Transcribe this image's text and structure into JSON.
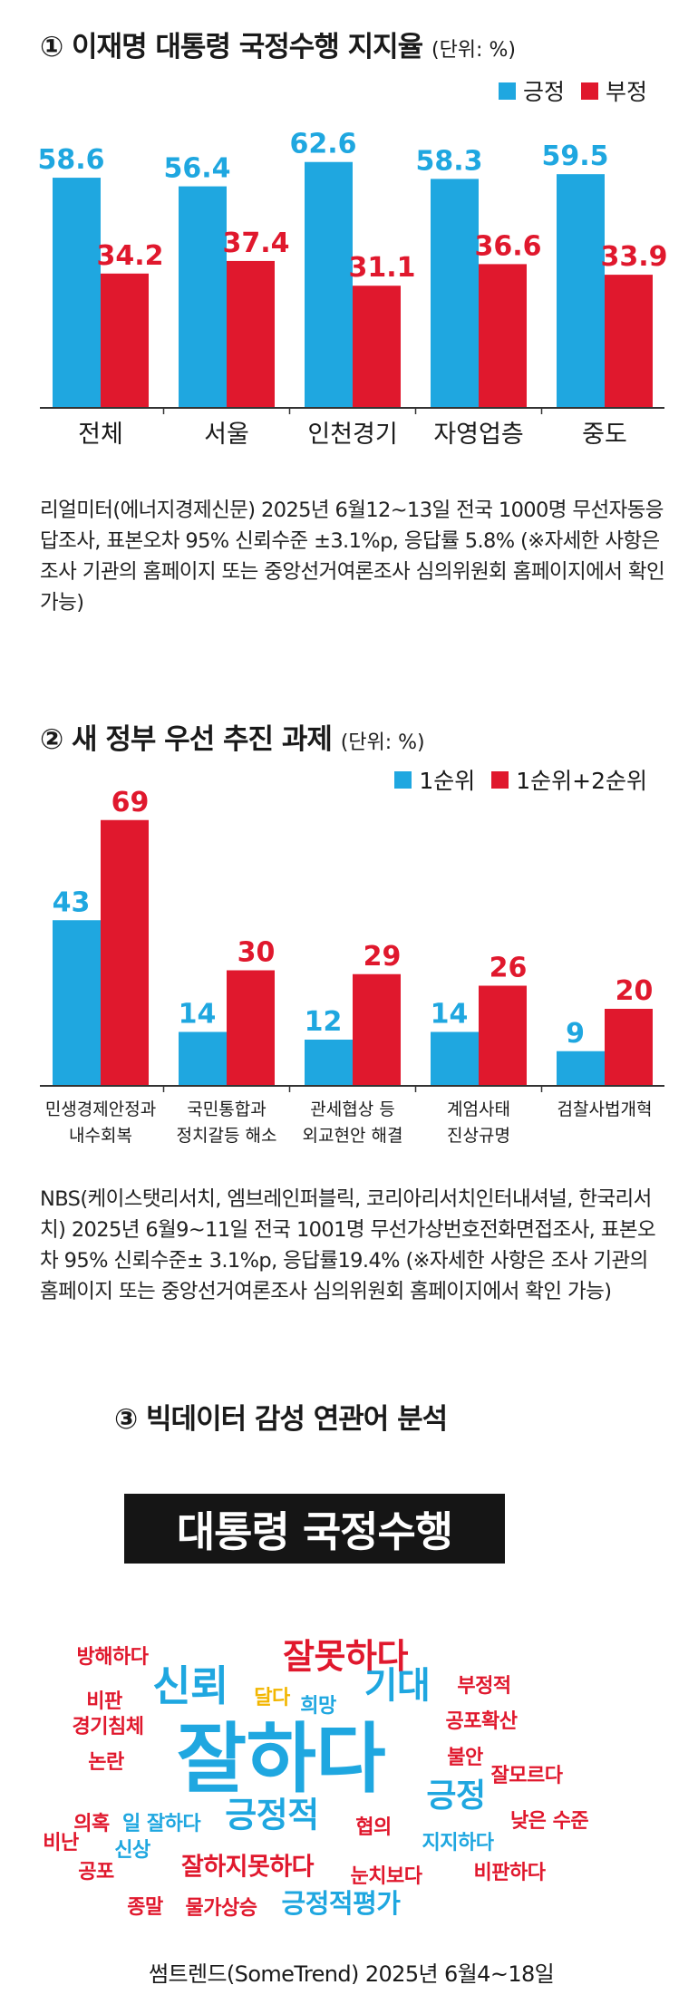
{
  "colors": {
    "blue": "#1fa7e0",
    "red": "#e0182d",
    "gold": "#f2b600",
    "black": "#151515"
  },
  "chart1": {
    "heading": "① 이재명 대통령 국정수행 지지율",
    "unit": "(단위: %)",
    "legend": [
      "긍정",
      "부정"
    ],
    "note": "리얼미터(에너지경제신문) 2025년 6월12~13일 전국 1000명 무선자동응답조사, 표본오차 95% 신뢰수준 ±3.1%p, 응답률 5.8% (※자세한 사항은 조사 기관의 홈페이지 또는 중앙선거여론조사 심의위원회 홈페이지에서 확인 가능)"
  },
  "chart2": {
    "heading": "② 새 정부 우선 추진 과제",
    "unit": "(단위: %)",
    "legend": [
      "1순위",
      "1순위+2순위"
    ],
    "note": "NBS(케이스탯리서치, 엠브레인퍼블릭, 코리아리서치인터내셔널, 한국리서치) 2025년 6월9~11일 전국 1001명 무선가상번호전화면접조사, 표본오차 95% 신뢰수준± 3.1%p, 응답률19.4% (※자세한 사항은 조사 기관의 홈페이지 또는 중앙선거여론조사 심의위원회 홈페이지에서 확인 가능)"
  },
  "section3": {
    "heading": "③ 빅데이터 감성 연관어 분석",
    "banner": "대통령 국정수행",
    "source": "썸트렌드(SomeTrend) 2025년 6월4~18일",
    "words": [
      {
        "text": "잘하다",
        "color": "blue"
      },
      {
        "text": "잘못하다",
        "color": "red"
      },
      {
        "text": "신뢰",
        "color": "blue"
      },
      {
        "text": "기대",
        "color": "blue"
      },
      {
        "text": "긍정적",
        "color": "blue"
      },
      {
        "text": "긍정",
        "color": "blue"
      },
      {
        "text": "잘하지못하다",
        "color": "red"
      },
      {
        "text": "긍정적평가",
        "color": "blue"
      },
      {
        "text": "방해하다",
        "color": "red"
      },
      {
        "text": "비판",
        "color": "red"
      },
      {
        "text": "경기침체",
        "color": "red"
      },
      {
        "text": "논란",
        "color": "red"
      },
      {
        "text": "달다",
        "color": "gold"
      },
      {
        "text": "희망",
        "color": "blue"
      },
      {
        "text": "부정적",
        "color": "red"
      },
      {
        "text": "공포확산",
        "color": "red"
      },
      {
        "text": "불안",
        "color": "red"
      },
      {
        "text": "잘모르다",
        "color": "red"
      },
      {
        "text": "의혹",
        "color": "red"
      },
      {
        "text": "일 잘하다",
        "color": "blue"
      },
      {
        "text": "비난",
        "color": "red"
      },
      {
        "text": "신상",
        "color": "blue"
      },
      {
        "text": "협의",
        "color": "red"
      },
      {
        "text": "지지하다",
        "color": "blue"
      },
      {
        "text": "낮은 수준",
        "color": "red"
      },
      {
        "text": "공포",
        "color": "red"
      },
      {
        "text": "눈치보다",
        "color": "red"
      },
      {
        "text": "비판하다",
        "color": "red"
      },
      {
        "text": "종말",
        "color": "red"
      },
      {
        "text": "물가상승",
        "color": "red"
      }
    ]
  },
  "chart_data": [
    {
      "type": "bar",
      "title": "① 이재명 대통령 국정수행 지지율",
      "unit": "(단위: %)",
      "categories": [
        "전체",
        "서울",
        "인천경기",
        "자영업층",
        "중도"
      ],
      "series": [
        {
          "name": "긍정",
          "values": [
            58.6,
            56.4,
            62.6,
            58.3,
            59.5
          ],
          "color": "#1fa7e0"
        },
        {
          "name": "부정",
          "values": [
            34.2,
            37.4,
            31.1,
            36.6,
            33.9
          ],
          "color": "#e0182d"
        }
      ],
      "ylim": [
        0,
        72
      ],
      "legend": "top-right",
      "grid": false
    },
    {
      "type": "bar",
      "title": "② 새 정부 우선 추진 과제",
      "unit": "(단위: %)",
      "categories": [
        "민생경제안정과\n내수회복",
        "국민통합과\n정치갈등 해소",
        "관세협상 등\n외교현안 해결",
        "계엄사태\n진상규명",
        "검찰사법개혁"
      ],
      "series": [
        {
          "name": "1순위",
          "values": [
            43,
            14,
            12,
            14,
            9
          ],
          "color": "#1fa7e0"
        },
        {
          "name": "1순위+2순위",
          "values": [
            69,
            30,
            29,
            26,
            20
          ],
          "color": "#e0182d"
        }
      ],
      "ylim": [
        0,
        80
      ],
      "legend": "top-right",
      "grid": false
    }
  ]
}
